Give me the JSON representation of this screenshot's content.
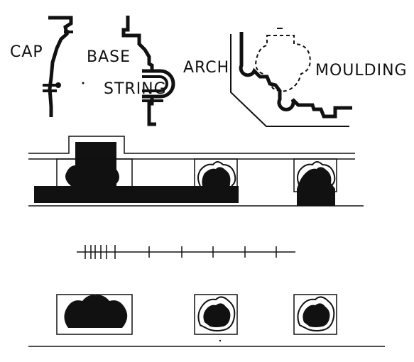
{
  "labels": {
    "cap": "CAP",
    "base": "BASE",
    "string": "STRING",
    "arch": "ARCH",
    "moulding": "MOULDING"
  },
  "scale_ticks": 12,
  "ink_color": "#111111",
  "paper_color": "#ffffff"
}
